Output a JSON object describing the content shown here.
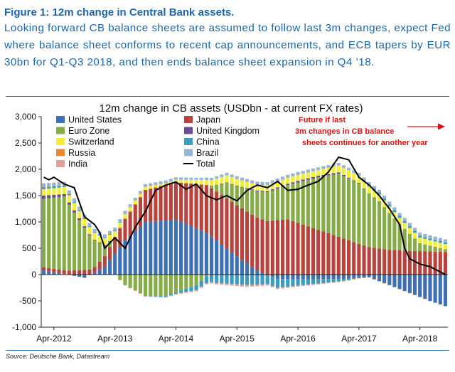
{
  "figure": {
    "title": "Figure 1: 12m change in Central Bank assets.",
    "description": "Looking forward CB balance sheets are assumed to follow last 3m changes, expect Fed where balance sheet conforms to recent cap announcements, and ECB tapers by EUR 30bn for Q1-Q3 2018, and then ends balance sheet expansion in Q4 ’18."
  },
  "source": "Source: Deutsche Bank, Datastream",
  "colors": {
    "United States": "#3f6fb4",
    "Japan": "#b8433d",
    "Euro Zone": "#86ac48",
    "United Kingdom": "#6b4c94",
    "Switzerland": "#f2ee3a",
    "China": "#3c9cbf",
    "Russia": "#e58a30",
    "Brazil": "#98b4d6",
    "India": "#e0a0a0",
    "Total": "#000000",
    "annotation": "#e01010"
  },
  "chart_data": {
    "type": "bar",
    "stacked": true,
    "title": "12m change in CB assets (USDbn - at current FX rates)",
    "ylim": [
      -1000,
      3000
    ],
    "yticks": [
      "3,000",
      "2,500",
      "2,000",
      "1,500",
      "1,000",
      "500",
      "0",
      "-500",
      "-1,000"
    ],
    "xticks": [
      "Apr-2012",
      "Apr-2013",
      "Apr-2014",
      "Apr-2015",
      "Apr-2016",
      "Apr-2017",
      "Apr-2018"
    ],
    "grid": false,
    "legend": {
      "placement": "top-left",
      "entries": [
        "United States",
        "Japan",
        "Euro Zone",
        "United Kingdom",
        "Switzerland",
        "China",
        "Russia",
        "Brazil",
        "India",
        "Total"
      ]
    },
    "annotation": "Future if last 3m changes in CB balance sheets continues for another year",
    "start": "Feb-2012",
    "months": 80,
    "series": [
      {
        "name": "United States",
        "key": [
          [
            0,
            80
          ],
          [
            8,
            -60
          ],
          [
            12,
            150
          ],
          [
            16,
            650
          ],
          [
            20,
            1000
          ],
          [
            26,
            1050
          ],
          [
            32,
            800
          ],
          [
            38,
            350
          ],
          [
            42,
            80
          ],
          [
            46,
            -80
          ],
          [
            50,
            -90
          ],
          [
            60,
            -80
          ],
          [
            64,
            -50
          ],
          [
            68,
            -200
          ],
          [
            72,
            -350
          ],
          [
            76,
            -500
          ],
          [
            79,
            -600
          ]
        ]
      },
      {
        "name": "Japan",
        "key": [
          [
            0,
            60
          ],
          [
            6,
            80
          ],
          [
            10,
            100
          ],
          [
            14,
            300
          ],
          [
            20,
            600
          ],
          [
            26,
            700
          ],
          [
            32,
            900
          ],
          [
            36,
            950
          ],
          [
            42,
            1000
          ],
          [
            48,
            1050
          ],
          [
            54,
            850
          ],
          [
            60,
            650
          ],
          [
            64,
            520
          ],
          [
            68,
            470
          ],
          [
            72,
            450
          ],
          [
            76,
            440
          ],
          [
            79,
            430
          ]
        ]
      },
      {
        "name": "Euro Zone",
        "key": [
          [
            0,
            1300
          ],
          [
            4,
            1400
          ],
          [
            8,
            800
          ],
          [
            12,
            200
          ],
          [
            16,
            -200
          ],
          [
            20,
            -400
          ],
          [
            24,
            -400
          ],
          [
            30,
            -200
          ],
          [
            36,
            300
          ],
          [
            42,
            500
          ],
          [
            48,
            650
          ],
          [
            54,
            1000
          ],
          [
            58,
            1200
          ],
          [
            62,
            1150
          ],
          [
            66,
            900
          ],
          [
            70,
            500
          ],
          [
            74,
            150
          ],
          [
            79,
            50
          ]
        ]
      },
      {
        "name": "United Kingdom",
        "key": [
          [
            0,
            60
          ],
          [
            6,
            40
          ],
          [
            10,
            15
          ],
          [
            34,
            0
          ],
          [
            50,
            30
          ],
          [
            58,
            25
          ],
          [
            64,
            0
          ],
          [
            79,
            0
          ]
        ]
      },
      {
        "name": "Switzerland",
        "key": [
          [
            0,
            120
          ],
          [
            6,
            140
          ],
          [
            12,
            130
          ],
          [
            18,
            70
          ],
          [
            24,
            30
          ],
          [
            30,
            80
          ],
          [
            36,
            130
          ],
          [
            42,
            110
          ],
          [
            48,
            110
          ],
          [
            54,
            110
          ],
          [
            60,
            140
          ],
          [
            66,
            130
          ],
          [
            72,
            110
          ],
          [
            79,
            100
          ]
        ]
      },
      {
        "name": "China",
        "key": [
          [
            0,
            40
          ],
          [
            8,
            15
          ],
          [
            14,
            15
          ],
          [
            26,
            -30
          ],
          [
            34,
            -160
          ],
          [
            40,
            -200
          ],
          [
            46,
            -170
          ],
          [
            50,
            -120
          ],
          [
            58,
            -50
          ],
          [
            64,
            30
          ],
          [
            68,
            40
          ],
          [
            79,
            30
          ]
        ]
      },
      {
        "name": "Russia",
        "key": [
          [
            0,
            10
          ],
          [
            40,
            -5
          ],
          [
            50,
            0
          ],
          [
            60,
            -10
          ],
          [
            79,
            0
          ]
        ]
      },
      {
        "name": "Brazil",
        "key": [
          [
            0,
            60
          ],
          [
            6,
            60
          ],
          [
            12,
            50
          ],
          [
            18,
            50
          ],
          [
            24,
            50
          ],
          [
            30,
            40
          ],
          [
            36,
            50
          ],
          [
            42,
            60
          ],
          [
            48,
            60
          ],
          [
            54,
            50
          ],
          [
            60,
            50
          ],
          [
            66,
            50
          ],
          [
            72,
            60
          ],
          [
            79,
            60
          ]
        ]
      },
      {
        "name": "India",
        "key": [
          [
            0,
            5
          ],
          [
            40,
            -30
          ],
          [
            50,
            -20
          ],
          [
            60,
            0
          ],
          [
            79,
            0
          ]
        ]
      },
      {
        "name": "Total",
        "type": "line",
        "key": [
          [
            0,
            1850
          ],
          [
            1,
            1800
          ],
          [
            2,
            1850
          ],
          [
            4,
            1720
          ],
          [
            6,
            1650
          ],
          [
            8,
            1100
          ],
          [
            10,
            950
          ],
          [
            11,
            800
          ],
          [
            12,
            500
          ],
          [
            14,
            700
          ],
          [
            16,
            500
          ],
          [
            18,
            900
          ],
          [
            20,
            1200
          ],
          [
            22,
            1600
          ],
          [
            24,
            1700
          ],
          [
            26,
            1760
          ],
          [
            28,
            1620
          ],
          [
            30,
            1720
          ],
          [
            32,
            1500
          ],
          [
            34,
            1420
          ],
          [
            36,
            1500
          ],
          [
            38,
            1400
          ],
          [
            40,
            1600
          ],
          [
            42,
            1700
          ],
          [
            44,
            1650
          ],
          [
            46,
            1770
          ],
          [
            48,
            1600
          ],
          [
            50,
            1620
          ],
          [
            52,
            1700
          ],
          [
            54,
            1770
          ],
          [
            56,
            1950
          ],
          [
            58,
            2230
          ],
          [
            60,
            2180
          ],
          [
            62,
            1850
          ],
          [
            64,
            1700
          ],
          [
            66,
            1500
          ],
          [
            68,
            1250
          ],
          [
            70,
            950
          ],
          [
            71,
            500
          ],
          [
            72,
            300
          ],
          [
            74,
            200
          ],
          [
            76,
            150
          ],
          [
            78,
            50
          ],
          [
            79,
            0
          ]
        ]
      }
    ]
  }
}
